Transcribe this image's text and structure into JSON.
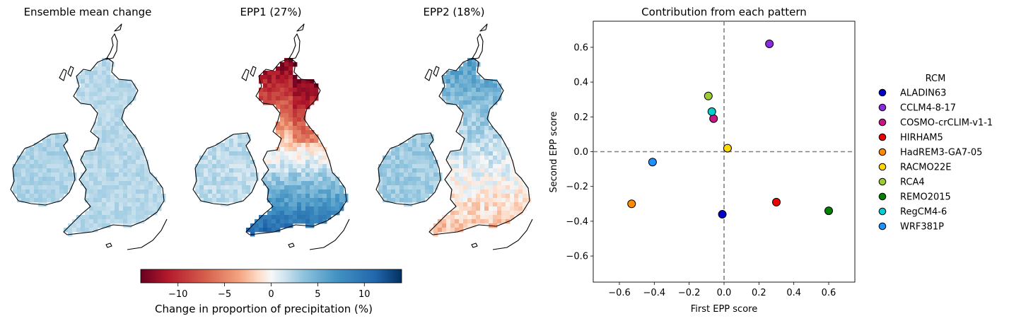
{
  "maps": [
    {
      "title": "Ensemble mean change",
      "pattern": "mean"
    },
    {
      "title": "EPP1 (27%)",
      "pattern": "epp1"
    },
    {
      "title": "EPP2 (18%)",
      "pattern": "epp2"
    }
  ],
  "colorbar": {
    "label": "Change in proportion of precipitation (%)",
    "colormap": "RdBu",
    "range": [
      -14,
      14
    ],
    "ticks": [
      -10,
      -5,
      0,
      5,
      10
    ],
    "tick_labels": [
      "−10",
      "−5",
      "0",
      "5",
      "10"
    ],
    "low_color": "#67001f",
    "high_color": "#053061"
  },
  "chart_data": {
    "type": "scatter",
    "title": "Contribution from each pattern",
    "xlabel": "First EPP score",
    "ylabel": "Second EPP score",
    "xlim": [
      -0.75,
      0.75
    ],
    "ylim": [
      -0.75,
      0.75
    ],
    "xticks": [
      -0.6,
      -0.4,
      -0.2,
      0.0,
      0.2,
      0.4,
      0.6
    ],
    "xtick_labels": [
      "−0.6",
      "−0.4",
      "−0.2",
      "0.0",
      "0.2",
      "0.4",
      "0.6"
    ],
    "yticks": [
      -0.6,
      -0.4,
      -0.2,
      0.0,
      0.2,
      0.4,
      0.6
    ],
    "ytick_labels": [
      "−0.6",
      "−0.4",
      "−0.2",
      "0.0",
      "0.2",
      "0.4",
      "0.6"
    ],
    "reference_lines": {
      "x": 0,
      "y": 0,
      "style": "dashed",
      "color": "#808080"
    },
    "legend_title": "RCM",
    "legend_position": "right-outside",
    "series": [
      {
        "name": "ALADIN63",
        "x": -0.01,
        "y": -0.36,
        "color": "#0000cd"
      },
      {
        "name": "CCLM4-8-17",
        "x": 0.26,
        "y": 0.62,
        "color": "#8a2be2"
      },
      {
        "name": "COSMO-crCLIM-v1-1",
        "x": -0.06,
        "y": 0.19,
        "color": "#c71585"
      },
      {
        "name": "HIRHAM5",
        "x": 0.3,
        "y": -0.29,
        "color": "#ee0000"
      },
      {
        "name": "HadREM3-GA7-05",
        "x": -0.53,
        "y": -0.3,
        "color": "#ff8c00"
      },
      {
        "name": "RACMO22E",
        "x": 0.02,
        "y": 0.02,
        "color": "#ffd700"
      },
      {
        "name": "RCA4",
        "x": -0.09,
        "y": 0.32,
        "color": "#9acd32"
      },
      {
        "name": "REMO2015",
        "x": 0.6,
        "y": -0.34,
        "color": "#008000"
      },
      {
        "name": "RegCM4-6",
        "x": -0.07,
        "y": 0.23,
        "color": "#00ced1"
      },
      {
        "name": "WRF381P",
        "x": -0.41,
        "y": -0.06,
        "color": "#1e90ff"
      }
    ]
  }
}
